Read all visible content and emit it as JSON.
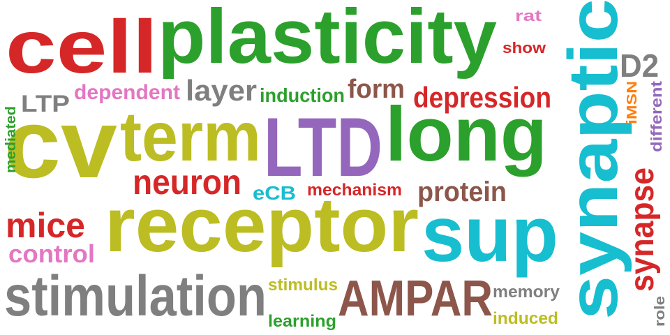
{
  "palette": {
    "red": "#d62728",
    "green": "#2ca02c",
    "olive": "#bcbd22",
    "purple": "#9467bd",
    "cyan": "#17becf",
    "brown": "#8c564b",
    "gray": "#7f7f7f",
    "pink": "#e377c2",
    "orange": "#ff7f0e"
  },
  "words": [
    {
      "text": "cell",
      "color": "#d62728",
      "weight": 96
    },
    {
      "text": "plasticity",
      "color": "#2ca02c",
      "weight": 100
    },
    {
      "text": "synaptic",
      "color": "#17becf",
      "weight": 90
    },
    {
      "text": "LTD",
      "color": "#9467bd",
      "weight": 98
    },
    {
      "text": "long",
      "color": "#2ca02c",
      "weight": 92
    },
    {
      "text": "cv",
      "color": "#bcbd22",
      "weight": 97
    },
    {
      "text": "term",
      "color": "#bcbd22",
      "weight": 80
    },
    {
      "text": "receptor",
      "color": "#bcbd22",
      "weight": 95
    },
    {
      "text": "sup",
      "color": "#17becf",
      "weight": 88
    },
    {
      "text": "stimulation",
      "color": "#7f7f7f",
      "weight": 78
    },
    {
      "text": "AMPAR",
      "color": "#8c564b",
      "weight": 70
    },
    {
      "text": "neuron",
      "color": "#d62728",
      "weight": 50
    },
    {
      "text": "depression",
      "color": "#d62728",
      "weight": 42
    },
    {
      "text": "layer",
      "color": "#7f7f7f",
      "weight": 40
    },
    {
      "text": "form",
      "color": "#8c564b",
      "weight": 36
    },
    {
      "text": "protein",
      "color": "#8c564b",
      "weight": 38
    },
    {
      "text": "mice",
      "color": "#d62728",
      "weight": 48
    },
    {
      "text": "control",
      "color": "#e377c2",
      "weight": 34
    },
    {
      "text": "synapse",
      "color": "#d62728",
      "weight": 46
    },
    {
      "text": "D2",
      "color": "#7f7f7f",
      "weight": 44
    },
    {
      "text": "LTP",
      "color": "#7f7f7f",
      "weight": 32
    },
    {
      "text": "dependent",
      "color": "#e377c2",
      "weight": 30
    },
    {
      "text": "induction",
      "color": "#2ca02c",
      "weight": 28
    },
    {
      "text": "eCB",
      "color": "#17becf",
      "weight": 26
    },
    {
      "text": "mechanism",
      "color": "#d62728",
      "weight": 24
    },
    {
      "text": "stimulus",
      "color": "#bcbd22",
      "weight": 24
    },
    {
      "text": "learning",
      "color": "#2ca02c",
      "weight": 24
    },
    {
      "text": "memory",
      "color": "#7f7f7f",
      "weight": 24
    },
    {
      "text": "induced",
      "color": "#bcbd22",
      "weight": 24
    },
    {
      "text": "show",
      "color": "#d62728",
      "weight": 22
    },
    {
      "text": "rat",
      "color": "#e377c2",
      "weight": 22
    },
    {
      "text": "iMSN",
      "color": "#ff7f0e",
      "weight": 20
    },
    {
      "text": "different",
      "color": "#9467bd",
      "weight": 22
    },
    {
      "text": "mediated",
      "color": "#2ca02c",
      "weight": 20
    },
    {
      "text": "role",
      "color": "#7f7f7f",
      "weight": 20
    }
  ]
}
